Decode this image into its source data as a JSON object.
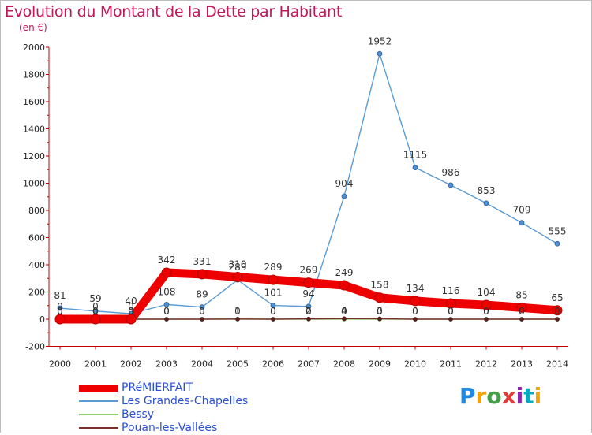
{
  "title": "Evolution du Montant de la Dette par Habitant",
  "subtitle": "(en €)",
  "logo_text": "Proxiti",
  "chart_data": {
    "type": "line",
    "x": [
      "2000",
      "2001",
      "2002",
      "2003",
      "2004",
      "2005",
      "2006",
      "2007",
      "2008",
      "2009",
      "2010",
      "2011",
      "2012",
      "2013",
      "2014"
    ],
    "ylim": [
      -200,
      2000
    ],
    "yticks": [
      -200,
      0,
      200,
      400,
      600,
      800,
      1000,
      1200,
      1400,
      1600,
      1800,
      2000
    ],
    "grid": false,
    "legend_position": "bottom-left",
    "series": [
      {
        "name": "PRéMIERFAIT",
        "color": "#ee0000",
        "line_width": "thick",
        "values": [
          0,
          0,
          0,
          342,
          331,
          310,
          289,
          269,
          249,
          158,
          134,
          116,
          104,
          85,
          65
        ],
        "labels": [
          "0",
          "0",
          "0",
          "342",
          "331",
          "310",
          "289",
          "269",
          "249",
          "158",
          "134",
          "116",
          "104",
          "85",
          "65"
        ]
      },
      {
        "name": "Les Grandes-Chapelles",
        "color": "#5b9bd5",
        "line_width": "thin",
        "values": [
          81,
          59,
          40,
          108,
          89,
          289,
          101,
          94,
          904,
          1952,
          1115,
          986,
          853,
          709,
          555
        ],
        "labels": [
          "81",
          "59",
          "40",
          "108",
          "89",
          "289",
          "101",
          "94",
          "904",
          "1952",
          "1115",
          "986",
          "853",
          "709",
          "555"
        ]
      },
      {
        "name": "Bessy",
        "color": "#8ed26b",
        "line_width": "thin",
        "values": [
          0,
          0,
          0,
          0,
          0,
          0,
          0,
          0,
          0,
          0,
          0,
          0,
          0,
          0,
          0
        ],
        "labels": [
          "0",
          "0",
          "0",
          "0",
          "0",
          "0",
          "0",
          "0",
          "0",
          "0",
          "0",
          "0",
          "0",
          "0",
          "0"
        ]
      },
      {
        "name": "Pouan-les-Vallées",
        "color": "#7a2e2e",
        "line_width": "thin",
        "values": [
          0,
          0,
          0,
          0,
          0,
          1,
          0,
          2,
          4,
          3,
          0,
          0,
          0,
          0,
          0
        ],
        "labels": [
          "0",
          "0",
          "0",
          "0",
          "0",
          "1",
          "0",
          "2",
          "4",
          "3",
          "0",
          "0",
          "0",
          "0",
          "0"
        ]
      }
    ]
  }
}
